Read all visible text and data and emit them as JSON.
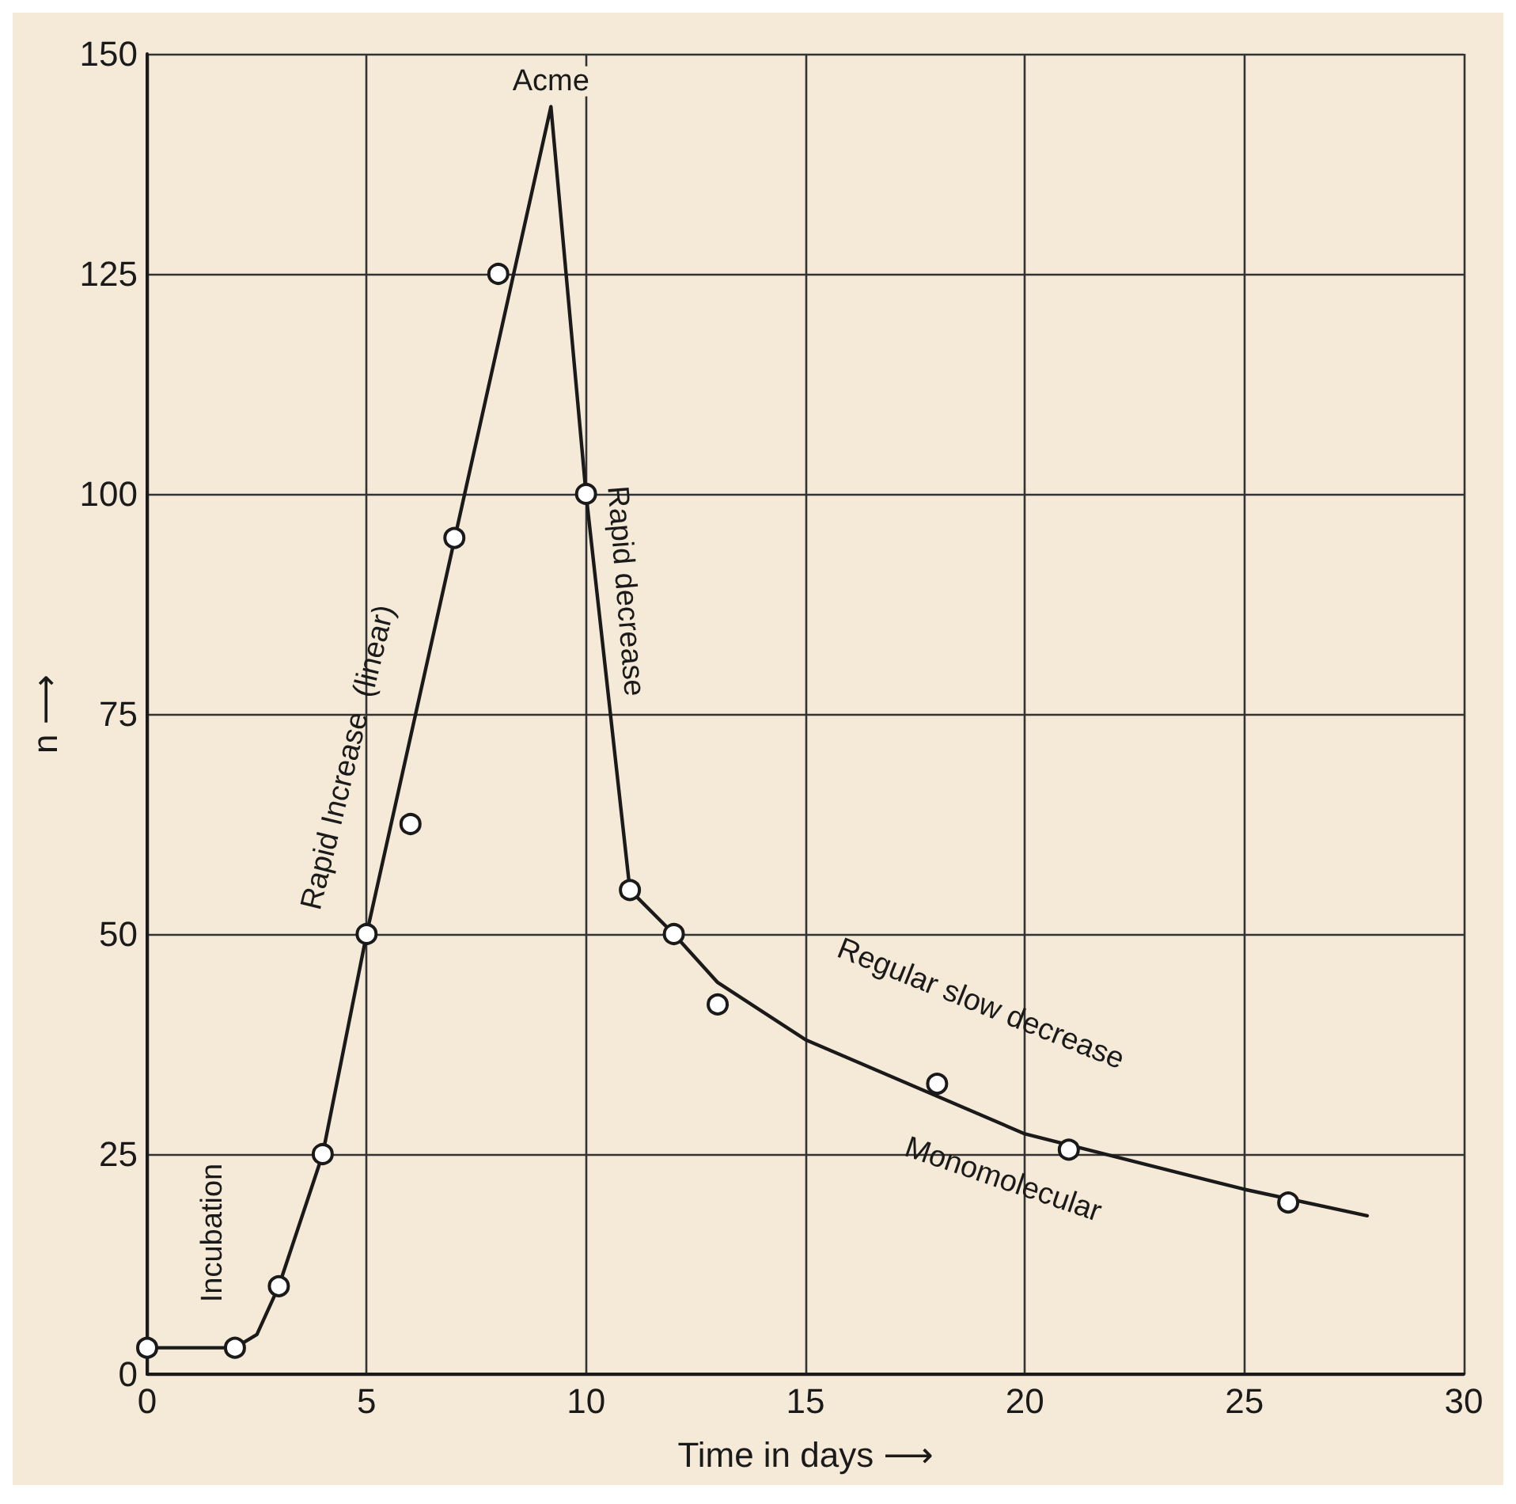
{
  "chart_data": {
    "type": "line",
    "xlabel": "Time in days ⟶",
    "ylabel": "n ⟶",
    "xlim": [
      0,
      30
    ],
    "ylim": [
      0,
      150
    ],
    "xticks": [
      0,
      5,
      10,
      15,
      20,
      25,
      30
    ],
    "yticks": [
      0,
      25,
      50,
      75,
      100,
      125,
      150
    ],
    "grid": true,
    "series": [
      {
        "color": "#1a1a1a",
        "marker": "none",
        "line_style": "solid",
        "x": [
          0,
          2,
          2.5,
          3,
          4,
          5,
          9.2,
          10,
          11,
          12,
          13,
          15,
          20,
          25,
          27.8
        ],
        "values": [
          3,
          3,
          4.5,
          10,
          25,
          50,
          144,
          100,
          55,
          50,
          44.5,
          38,
          27.3,
          21,
          18
        ]
      },
      {
        "type": "scatter",
        "color": "#1a1a1a",
        "marker": "circle",
        "x": [
          0,
          2,
          3,
          4,
          5,
          6,
          7,
          8,
          10,
          11,
          12,
          13,
          18,
          21,
          26
        ],
        "values": [
          3,
          3,
          10,
          25,
          50,
          62.5,
          95,
          125,
          100,
          55,
          50,
          42,
          33,
          25.5,
          19.5
        ]
      }
    ],
    "annotations": [
      {
        "text": "Acme",
        "x": 9.2,
        "y": 144
      },
      "Incubation",
      "Rapid Increase  (linear)",
      "Rapid decrease",
      "Regular slow decrease",
      "Monomolecular"
    ]
  }
}
